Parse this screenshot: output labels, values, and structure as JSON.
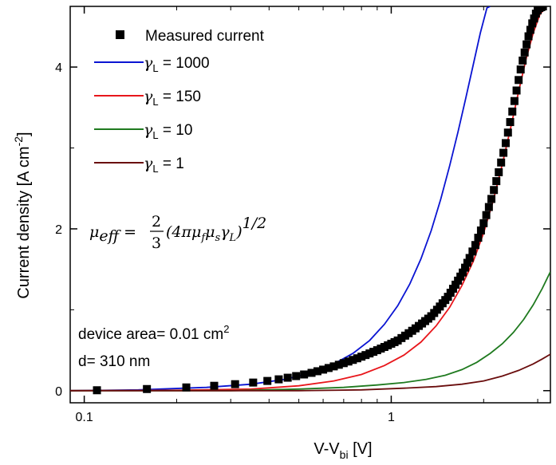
{
  "chart_data": {
    "type": "line",
    "xlabel_main": "V-V",
    "xlabel_sub": "bi",
    "xlabel_unit": " [V]",
    "ylabel_main": "Current density [A cm",
    "ylabel_sup": "-2",
    "ylabel_end": "]",
    "x_scale": "log",
    "xlim": [
      0.09,
      3.3
    ],
    "ylim": [
      -0.15,
      4.75
    ],
    "x_ticks": [
      {
        "value": 0.1,
        "label": "0.1"
      },
      {
        "value": 1,
        "label": "1"
      }
    ],
    "y_ticks": [
      {
        "value": 0,
        "label": "0"
      },
      {
        "value": 2,
        "label": "2"
      },
      {
        "value": 4,
        "label": "4"
      }
    ],
    "legend_position": "top-left",
    "series": [
      {
        "name": "Measured current",
        "kind": "scatter",
        "marker": "square",
        "color": "#000000",
        "x": [
          0.11,
          0.16,
          0.215,
          0.265,
          0.31,
          0.355,
          0.395,
          0.43,
          0.46,
          0.49,
          0.52,
          0.55,
          0.575,
          0.6,
          0.625,
          0.65,
          0.675,
          0.7,
          0.725,
          0.75,
          0.775,
          0.8,
          0.825,
          0.85,
          0.875,
          0.9,
          0.925,
          0.95,
          0.975,
          1.0,
          1.025,
          1.05,
          1.08,
          1.11,
          1.14,
          1.17,
          1.2,
          1.23,
          1.26,
          1.29,
          1.32,
          1.35,
          1.38,
          1.41,
          1.44,
          1.47,
          1.5,
          1.53,
          1.56,
          1.59,
          1.62,
          1.65,
          1.68,
          1.71,
          1.74,
          1.77,
          1.8,
          1.84,
          1.88,
          1.92,
          1.96,
          2.0,
          2.04,
          2.08,
          2.12,
          2.16,
          2.2,
          2.24,
          2.28,
          2.32,
          2.36,
          2.4,
          2.44,
          2.48,
          2.52,
          2.56,
          2.6,
          2.64,
          2.68,
          2.72,
          2.76,
          2.8,
          2.84,
          2.88,
          2.92,
          2.96,
          3.0,
          3.04,
          3.08,
          3.12
        ],
        "y": [
          0.005,
          0.02,
          0.04,
          0.06,
          0.08,
          0.1,
          0.12,
          0.14,
          0.16,
          0.18,
          0.2,
          0.22,
          0.24,
          0.26,
          0.28,
          0.3,
          0.32,
          0.34,
          0.36,
          0.38,
          0.4,
          0.42,
          0.44,
          0.46,
          0.48,
          0.5,
          0.52,
          0.54,
          0.56,
          0.58,
          0.6,
          0.62,
          0.65,
          0.68,
          0.71,
          0.74,
          0.77,
          0.8,
          0.83,
          0.86,
          0.89,
          0.92,
          0.96,
          1.0,
          1.04,
          1.08,
          1.12,
          1.16,
          1.21,
          1.26,
          1.31,
          1.36,
          1.41,
          1.46,
          1.52,
          1.58,
          1.64,
          1.72,
          1.8,
          1.89,
          1.98,
          2.07,
          2.17,
          2.27,
          2.37,
          2.48,
          2.59,
          2.7,
          2.82,
          2.94,
          3.06,
          3.19,
          3.32,
          3.45,
          3.58,
          3.71,
          3.84,
          3.97,
          4.08,
          4.18,
          4.28,
          4.38,
          4.46,
          4.54,
          4.6,
          4.66,
          4.7,
          4.73,
          4.74,
          4.75
        ]
      },
      {
        "name": "1000",
        "kind": "line",
        "color": "#0a14d2",
        "x": [
          0.09,
          0.15,
          0.25,
          0.35,
          0.45,
          0.55,
          0.65,
          0.75,
          0.85,
          0.95,
          1.05,
          1.15,
          1.25,
          1.35,
          1.45,
          1.55,
          1.65,
          1.75,
          1.85,
          1.95,
          2.05,
          2.1
        ],
        "y": [
          0.0,
          0.01,
          0.04,
          0.08,
          0.14,
          0.22,
          0.33,
          0.46,
          0.62,
          0.82,
          1.05,
          1.32,
          1.63,
          1.98,
          2.37,
          2.78,
          3.2,
          3.62,
          4.03,
          4.42,
          4.73,
          4.75
        ]
      },
      {
        "name": "150",
        "kind": "line",
        "color": "#e8161b",
        "x": [
          0.09,
          0.2,
          0.35,
          0.5,
          0.65,
          0.8,
          0.95,
          1.1,
          1.25,
          1.4,
          1.55,
          1.7,
          1.85,
          2.0,
          2.15,
          2.3,
          2.45,
          2.6,
          2.75,
          2.9,
          3.05,
          3.2
        ],
        "y": [
          0.0,
          0.005,
          0.02,
          0.06,
          0.12,
          0.2,
          0.31,
          0.44,
          0.6,
          0.8,
          1.03,
          1.3,
          1.6,
          1.95,
          2.35,
          2.8,
          3.25,
          3.7,
          4.1,
          4.42,
          4.65,
          4.75
        ]
      },
      {
        "name": "10",
        "kind": "line",
        "color": "#1f7a1f",
        "x": [
          0.09,
          0.3,
          0.5,
          0.7,
          0.9,
          1.1,
          1.3,
          1.5,
          1.7,
          1.9,
          2.1,
          2.3,
          2.5,
          2.7,
          2.9,
          3.1,
          3.3
        ],
        "y": [
          0.0,
          0.0,
          0.02,
          0.04,
          0.07,
          0.1,
          0.14,
          0.19,
          0.26,
          0.35,
          0.46,
          0.58,
          0.72,
          0.88,
          1.06,
          1.26,
          1.47
        ]
      },
      {
        "name": "1",
        "kind": "line",
        "color": "#6a0d0d",
        "x": [
          0.09,
          0.5,
          0.8,
          1.1,
          1.4,
          1.7,
          2.0,
          2.3,
          2.6,
          2.9,
          3.1,
          3.3
        ],
        "y": [
          0.0,
          0.0,
          0.01,
          0.03,
          0.05,
          0.08,
          0.12,
          0.18,
          0.25,
          0.33,
          0.39,
          0.45
        ]
      }
    ],
    "legend_gamma_symbol": "γ",
    "legend_gamma_sub": "L",
    "legend_eq": " = ",
    "formula": {
      "lhs": "μ",
      "lhs_sub": "eff",
      "eq": " = ",
      "num": "2",
      "den": "3",
      "body": "(4πμ",
      "sub_f": "f",
      "mu2": "μ",
      "sub_s": "s",
      "gamma": "γ",
      "sub_L": "L",
      "close": ")",
      "exp": "1/2"
    },
    "annotations": {
      "area_prefix": "device area= 0.01 cm",
      "area_sup": "2",
      "thickness": "d= 310 nm"
    }
  }
}
